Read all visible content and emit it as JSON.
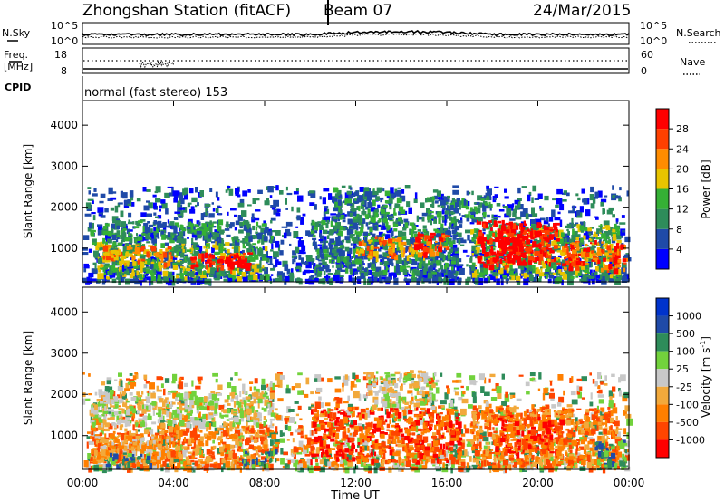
{
  "header": {
    "station": "Zhongshan Station (fitACF)",
    "beam": "Beam 07",
    "date": "24/Mar/2015"
  },
  "noise_panel": {
    "left_label": "N.Sky",
    "right_label": "N.Search",
    "left_ticks": [
      "10^5",
      "10^0"
    ],
    "right_ticks": [
      "10^5",
      "10^0"
    ]
  },
  "freq_panel": {
    "left_label_line1": "Freq.",
    "left_label_line2": "[MHz]",
    "right_label": "Nave",
    "left_ticks": [
      "18",
      "8"
    ],
    "right_ticks": [
      "60",
      "0"
    ]
  },
  "cpid": {
    "label": "CPID",
    "value": "normal (fast stereo) 153"
  },
  "colors": {
    "power_scale": [
      "#0000ff",
      "#1f4aa8",
      "#2e8c5a",
      "#35b035",
      "#e8c400",
      "#ff8c00",
      "#ff4000",
      "#ff0000"
    ],
    "velocity_scale": [
      "#ff0000",
      "#ff4500",
      "#ff7f00",
      "#f2a93b",
      "#c8c8c8",
      "#72d23c",
      "#2e8c5a",
      "#1f4aa8",
      "#0033cc"
    ]
  },
  "chart_data": [
    {
      "type": "heatmap",
      "title": "",
      "xlabel": "",
      "ylabel": "Slant Range [km]",
      "x_ticks": [
        "00:00",
        "04:00",
        "08:00",
        "12:00",
        "16:00",
        "20:00",
        "00:00"
      ],
      "y_ticks": [
        "1000",
        "2000",
        "3000",
        "4000"
      ],
      "colorbar": {
        "label": "Power [dB]",
        "ticks": [
          "4",
          "8",
          "12",
          "16",
          "20",
          "24",
          "28"
        ],
        "range": [
          0,
          32
        ]
      },
      "patches": [
        {
          "t": 0.5,
          "w": 7.5,
          "r0": 300,
          "r1": 1200,
          "level": 3
        },
        {
          "t": 0.8,
          "w": 3,
          "r0": 600,
          "r1": 1100,
          "level": 5
        },
        {
          "t": 4.7,
          "w": 2.6,
          "r0": 500,
          "r1": 900,
          "level": 7
        },
        {
          "t": 5.7,
          "w": 1.5,
          "r0": 550,
          "r1": 800,
          "level": 8
        },
        {
          "t": 0.3,
          "w": 8,
          "r0": 1200,
          "r1": 1700,
          "level": 2
        },
        {
          "t": 10,
          "w": 6.5,
          "r0": 400,
          "r1": 1700,
          "level": 2
        },
        {
          "t": 12,
          "w": 3,
          "r0": 800,
          "r1": 1300,
          "level": 5
        },
        {
          "t": 14.5,
          "w": 1.5,
          "r0": 900,
          "r1": 1400,
          "level": 6
        },
        {
          "t": 11,
          "w": 3,
          "r0": 1700,
          "r1": 2500,
          "level": 2
        },
        {
          "t": 17,
          "w": 6.5,
          "r0": 300,
          "r1": 1600,
          "level": 3
        },
        {
          "t": 17.3,
          "w": 3.5,
          "r0": 600,
          "r1": 1700,
          "level": 7
        },
        {
          "t": 18,
          "w": 1.2,
          "r0": 700,
          "r1": 1300,
          "level": 8
        },
        {
          "t": 21,
          "w": 2.8,
          "r0": 500,
          "r1": 1200,
          "level": 6
        },
        {
          "t": 15,
          "w": 3,
          "r0": 1700,
          "r1": 2300,
          "level": 2
        }
      ]
    },
    {
      "type": "heatmap",
      "title": "",
      "xlabel": "Time UT",
      "ylabel": "Slant Range [km]",
      "x_ticks": [
        "00:00",
        "04:00",
        "08:00",
        "12:00",
        "16:00",
        "20:00",
        "00:00"
      ],
      "y_ticks": [
        "1000",
        "2000",
        "3000",
        "4000"
      ],
      "colorbar": {
        "label": "Velocity [m s^-1]",
        "ticks": [
          "1000",
          "500",
          "100",
          "25",
          "-25",
          "-100",
          "-500",
          "-1000"
        ]
      },
      "patches": [
        {
          "t": 0.3,
          "w": 8,
          "r0": 300,
          "r1": 1300,
          "level": 2
        },
        {
          "t": 0.5,
          "w": 3.5,
          "r0": 500,
          "r1": 1000,
          "level": 3
        },
        {
          "t": 0.3,
          "w": 8,
          "r0": 1300,
          "r1": 2100,
          "level": 4
        },
        {
          "t": 1,
          "w": 2,
          "r0": 300,
          "r1": 600,
          "level": 6
        },
        {
          "t": 10,
          "w": 6.5,
          "r0": 400,
          "r1": 1700,
          "level": 1
        },
        {
          "t": 12.5,
          "w": 3,
          "r0": 1700,
          "r1": 2600,
          "level": 4
        },
        {
          "t": 17,
          "w": 6.5,
          "r0": 300,
          "r1": 1700,
          "level": 2
        },
        {
          "t": 18,
          "w": 3,
          "r0": 600,
          "r1": 1500,
          "level": 1
        },
        {
          "t": 22.5,
          "w": 1.3,
          "r0": 300,
          "r1": 900,
          "level": 6
        },
        {
          "t": 7,
          "w": 1.5,
          "r0": 300,
          "r1": 700,
          "level": 6
        }
      ]
    }
  ]
}
